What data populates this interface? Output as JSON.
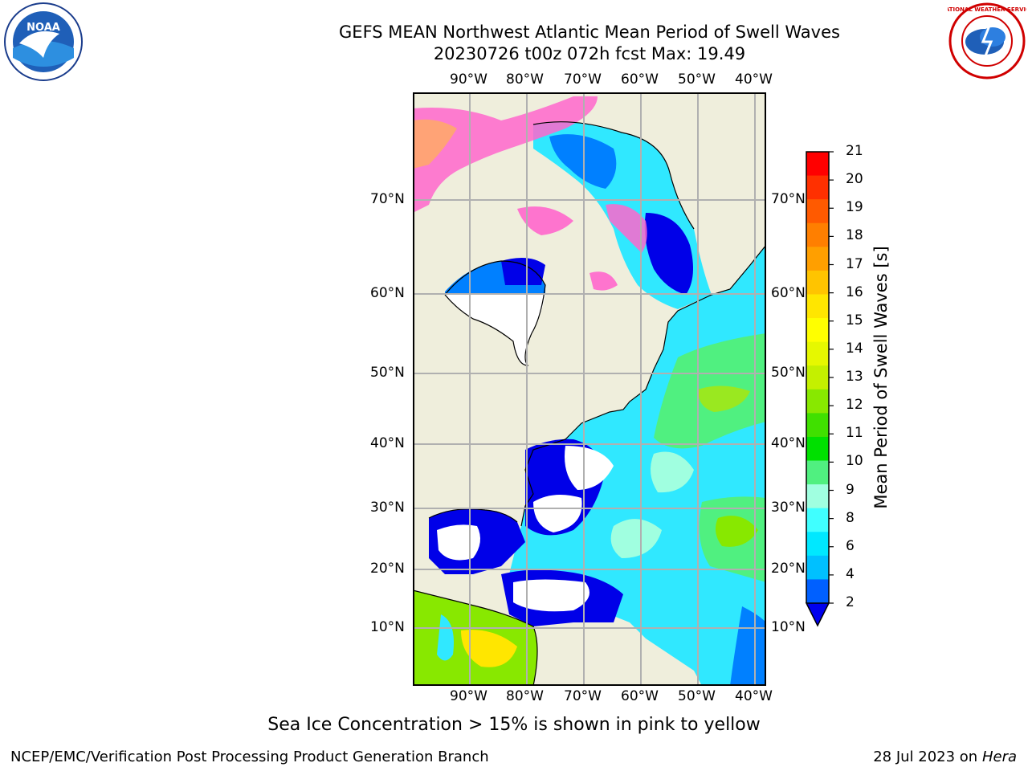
{
  "header": {
    "title_line1": "GEFS MEAN Northwest Atlantic Mean Period of Swell Waves",
    "title_line2": "20230726 t00z 072h fcst   Max: 19.49"
  },
  "logos": {
    "left": "noaa-logo",
    "left_text": "NOAA",
    "right": "nws-logo",
    "right_text": "NATIONAL WEATHER SERVICE"
  },
  "map": {
    "lon_labels": [
      "90°W",
      "80°W",
      "70°W",
      "60°W",
      "50°W",
      "40°W"
    ],
    "lat_labels": [
      "70°N",
      "60°N",
      "50°N",
      "40°N",
      "30°N",
      "20°N",
      "10°N"
    ],
    "land_color": "#efeedc",
    "grid_color": "#b0b0b0"
  },
  "colorbar": {
    "label": "Mean Period of Swell Waves [s]",
    "ticks": [
      "21",
      "20",
      "19",
      "18",
      "17",
      "16",
      "15",
      "14",
      "13",
      "12",
      "11",
      "10",
      "9",
      "8",
      "6",
      "4",
      "2"
    ],
    "colors": [
      "#ff0000",
      "#ff3000",
      "#ff5a00",
      "#ff7f00",
      "#ff9f00",
      "#ffc400",
      "#ffe600",
      "#ffff00",
      "#e6f800",
      "#c4f000",
      "#88e800",
      "#40e000",
      "#00e000",
      "#50f080",
      "#a0ffe0",
      "#40ffff",
      "#00e8ff",
      "#00c0ff",
      "#0060ff"
    ],
    "extend_color": "#0000ee"
  },
  "note": "Sea Ice Concentration > 15% is shown in pink to yellow",
  "footer": {
    "left": "NCEP/EMC/Verification Post Processing Product Generation Branch",
    "right_prefix": "28 Jul 2023 on ",
    "right_machine": "Hera"
  }
}
